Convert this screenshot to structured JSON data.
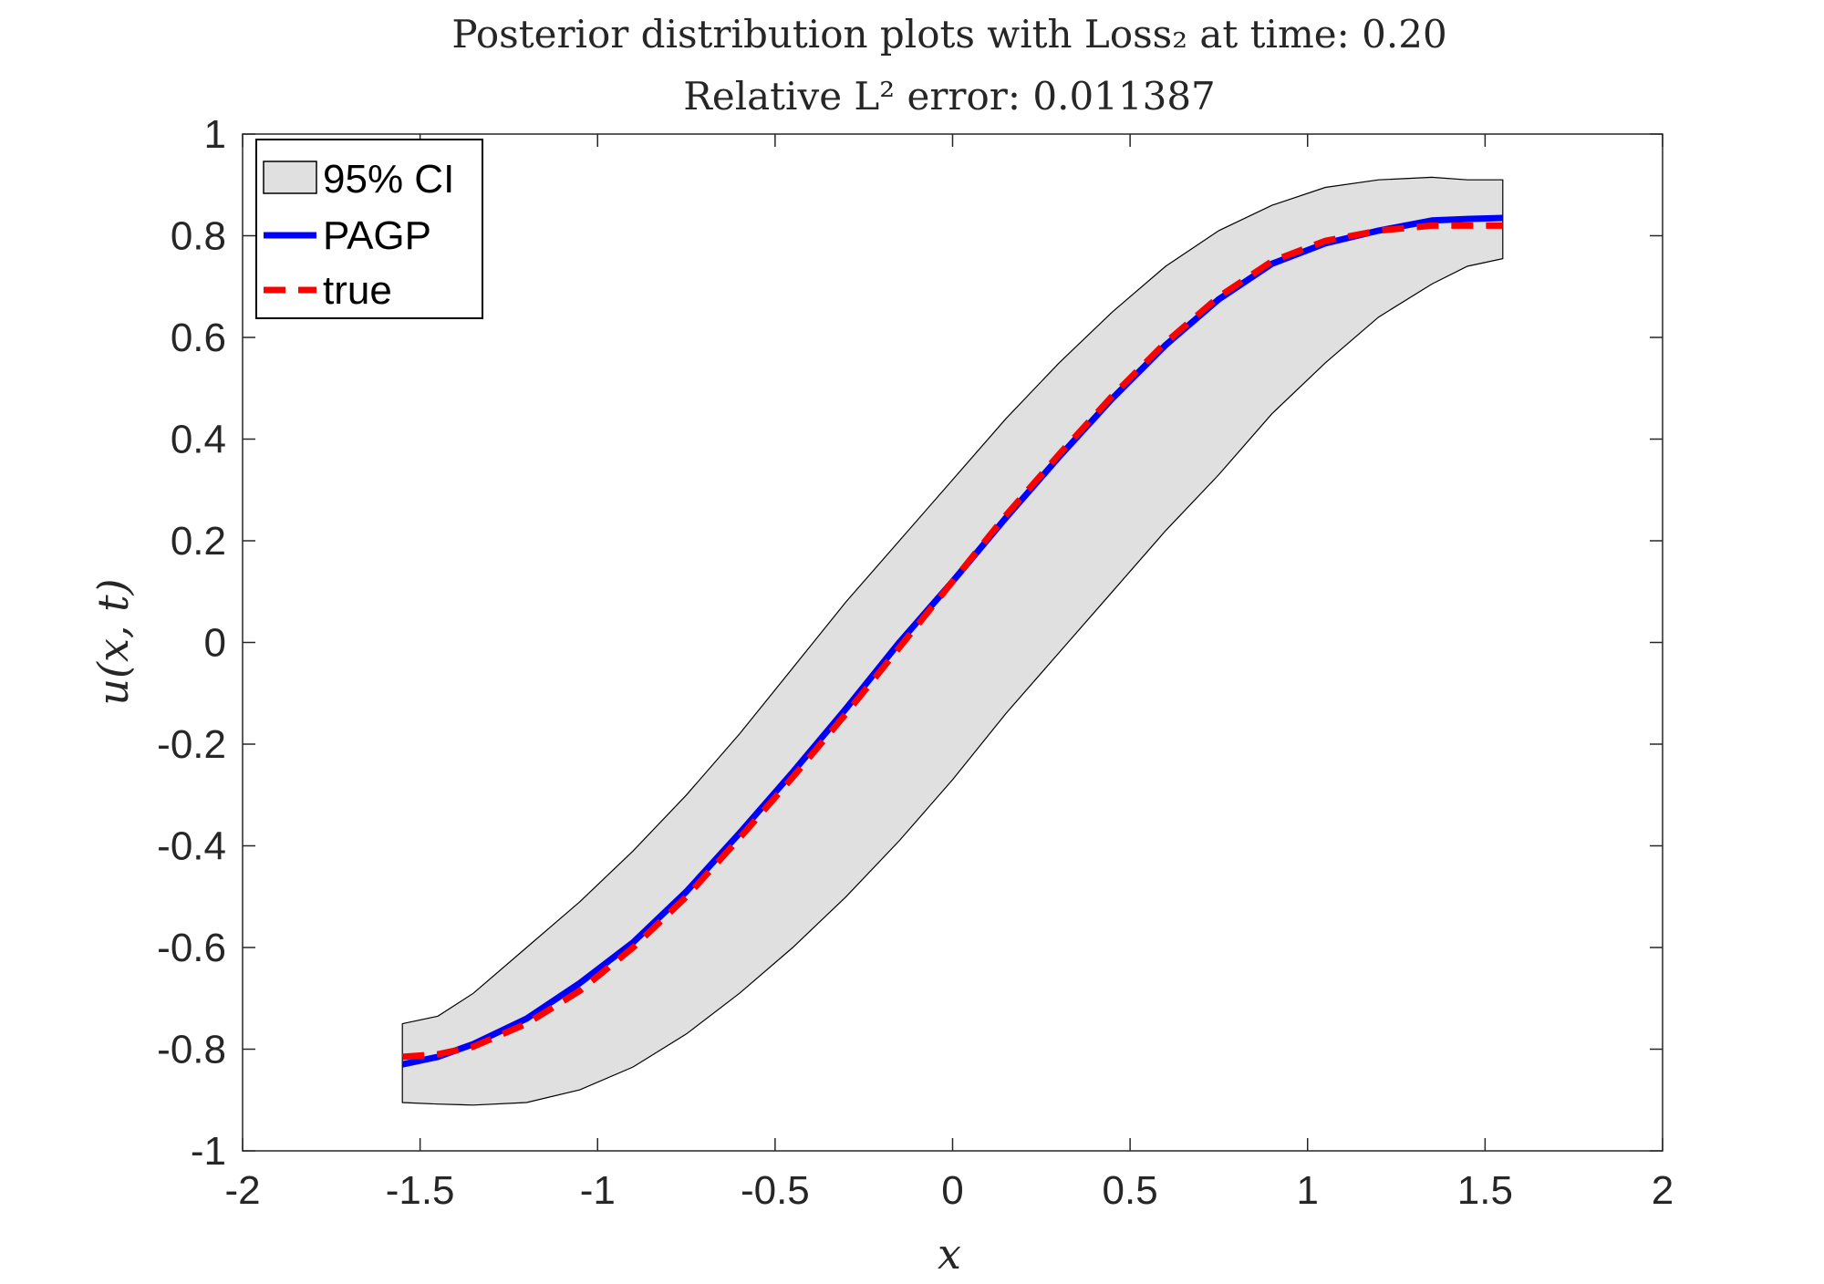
{
  "chart_data": {
    "type": "line",
    "title": "Posterior distribution plots with Loss₂ at time: 0.20",
    "subtitle": "Relative L² error: 0.011387",
    "xlabel": "x",
    "ylabel": "u(x, t)",
    "xlim": [
      -2,
      2
    ],
    "ylim": [
      -1,
      1
    ],
    "xticks": [
      -2,
      -1.5,
      -1,
      -0.5,
      0,
      0.5,
      1,
      1.5,
      2
    ],
    "xtick_labels": [
      "-2",
      "-1.5",
      "-1",
      "-0.5",
      "0",
      "0.5",
      "1",
      "1.5",
      "2"
    ],
    "yticks": [
      1,
      0.8,
      0.6,
      0.4,
      0.2,
      0,
      -0.2,
      -0.4,
      -0.6,
      -0.8,
      -1
    ],
    "ytick_labels": [
      "1",
      "0.8",
      "0.6",
      "0.4",
      "0.2",
      "0",
      "-0.2",
      "-0.4",
      "-0.6",
      "-0.8",
      "-1"
    ],
    "grid": false,
    "legend_position": "top-left",
    "x": [
      -1.55,
      -1.45,
      -1.35,
      -1.2,
      -1.05,
      -0.9,
      -0.75,
      -0.6,
      -0.45,
      -0.3,
      -0.15,
      0,
      0.15,
      0.3,
      0.45,
      0.6,
      0.75,
      0.9,
      1.05,
      1.2,
      1.35,
      1.45,
      1.55
    ],
    "series": [
      {
        "name": "95% CI",
        "kind": "band",
        "color": "#e0e0e0",
        "edge_color": "#000000",
        "lower": [
          -0.905,
          -0.908,
          -0.91,
          -0.905,
          -0.88,
          -0.835,
          -0.77,
          -0.69,
          -0.6,
          -0.5,
          -0.39,
          -0.27,
          -0.14,
          -0.02,
          0.1,
          0.22,
          0.33,
          0.45,
          0.55,
          0.64,
          0.705,
          0.74,
          0.755
        ],
        "upper": [
          -0.75,
          -0.735,
          -0.69,
          -0.6,
          -0.51,
          -0.41,
          -0.3,
          -0.18,
          -0.05,
          0.08,
          0.2,
          0.32,
          0.44,
          0.55,
          0.65,
          0.74,
          0.81,
          0.86,
          0.895,
          0.91,
          0.915,
          0.91,
          0.91
        ]
      },
      {
        "name": "PAGP",
        "kind": "line",
        "color": "#0000ff",
        "dash": "solid",
        "values": [
          -0.83,
          -0.815,
          -0.79,
          -0.74,
          -0.67,
          -0.59,
          -0.49,
          -0.375,
          -0.255,
          -0.13,
          0.0,
          0.12,
          0.245,
          0.365,
          0.48,
          0.585,
          0.675,
          0.745,
          0.785,
          0.81,
          0.83,
          0.833,
          0.835
        ]
      },
      {
        "name": "true",
        "kind": "line",
        "color": "#ff0000",
        "dash": "dashed",
        "values": [
          -0.815,
          -0.81,
          -0.795,
          -0.75,
          -0.685,
          -0.6,
          -0.5,
          -0.385,
          -0.265,
          -0.14,
          -0.01,
          0.12,
          0.25,
          0.37,
          0.485,
          0.59,
          0.68,
          0.75,
          0.79,
          0.81,
          0.82,
          0.82,
          0.82
        ]
      }
    ]
  }
}
